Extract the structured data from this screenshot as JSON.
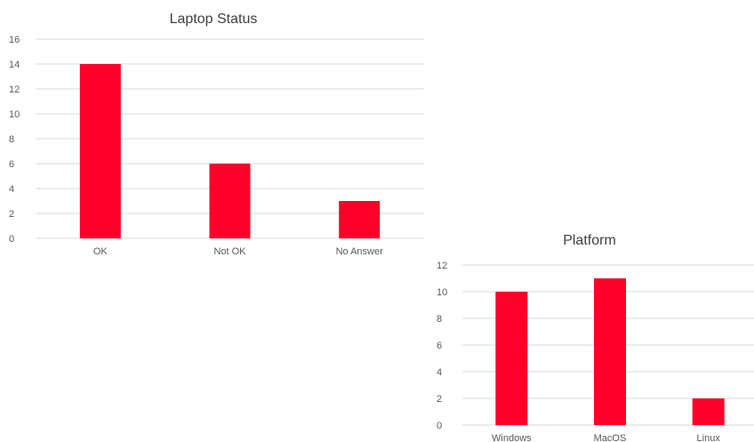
{
  "chart_data": [
    {
      "type": "bar",
      "title": "Laptop Status",
      "categories": [
        "OK",
        "Not OK",
        "No Answer"
      ],
      "values": [
        14,
        6,
        3
      ],
      "ylim": [
        0,
        16
      ],
      "yticks": [
        0,
        2,
        4,
        6,
        8,
        10,
        12,
        14,
        16
      ],
      "grid": true,
      "bar_color": "#FF0029"
    },
    {
      "type": "bar",
      "title": "Platform",
      "categories": [
        "Windows",
        "MacOS",
        "Linux"
      ],
      "values": [
        10,
        11,
        2
      ],
      "ylim": [
        0,
        12
      ],
      "yticks": [
        0,
        2,
        4,
        6,
        8,
        10,
        12
      ],
      "grid": true,
      "bar_color": "#FF0029"
    }
  ]
}
